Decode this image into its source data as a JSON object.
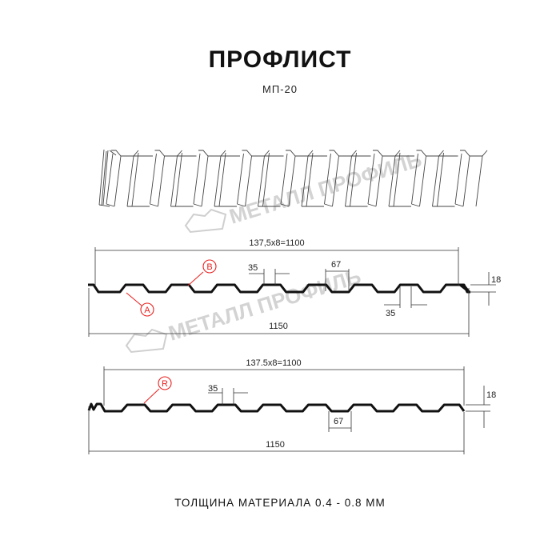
{
  "title": "ПРОФЛИСТ",
  "subtitle": "МП-20",
  "footer": "ТОЛЩИНА МАТЕРИАЛА 0.4 - 0.8 ММ",
  "watermark": "МЕТАЛЛ ПРОФИЛЬ",
  "colors": {
    "callout": "#e8201e",
    "profile": "#111111",
    "watermark": "#c9c9c9"
  },
  "profile_a": {
    "pitch_label": "137,5x8=1100",
    "width_label": "1150",
    "rib_top_label": "35",
    "rib_bottom_label": "35",
    "valley_label": "67",
    "height_label": "18",
    "callouts": [
      "B",
      "A"
    ]
  },
  "profile_b": {
    "pitch_label": "137.5x8=1100",
    "width_label": "1150",
    "rib_top_label": "35",
    "valley_label": "67",
    "height_label": "18",
    "callouts": [
      "R"
    ]
  }
}
